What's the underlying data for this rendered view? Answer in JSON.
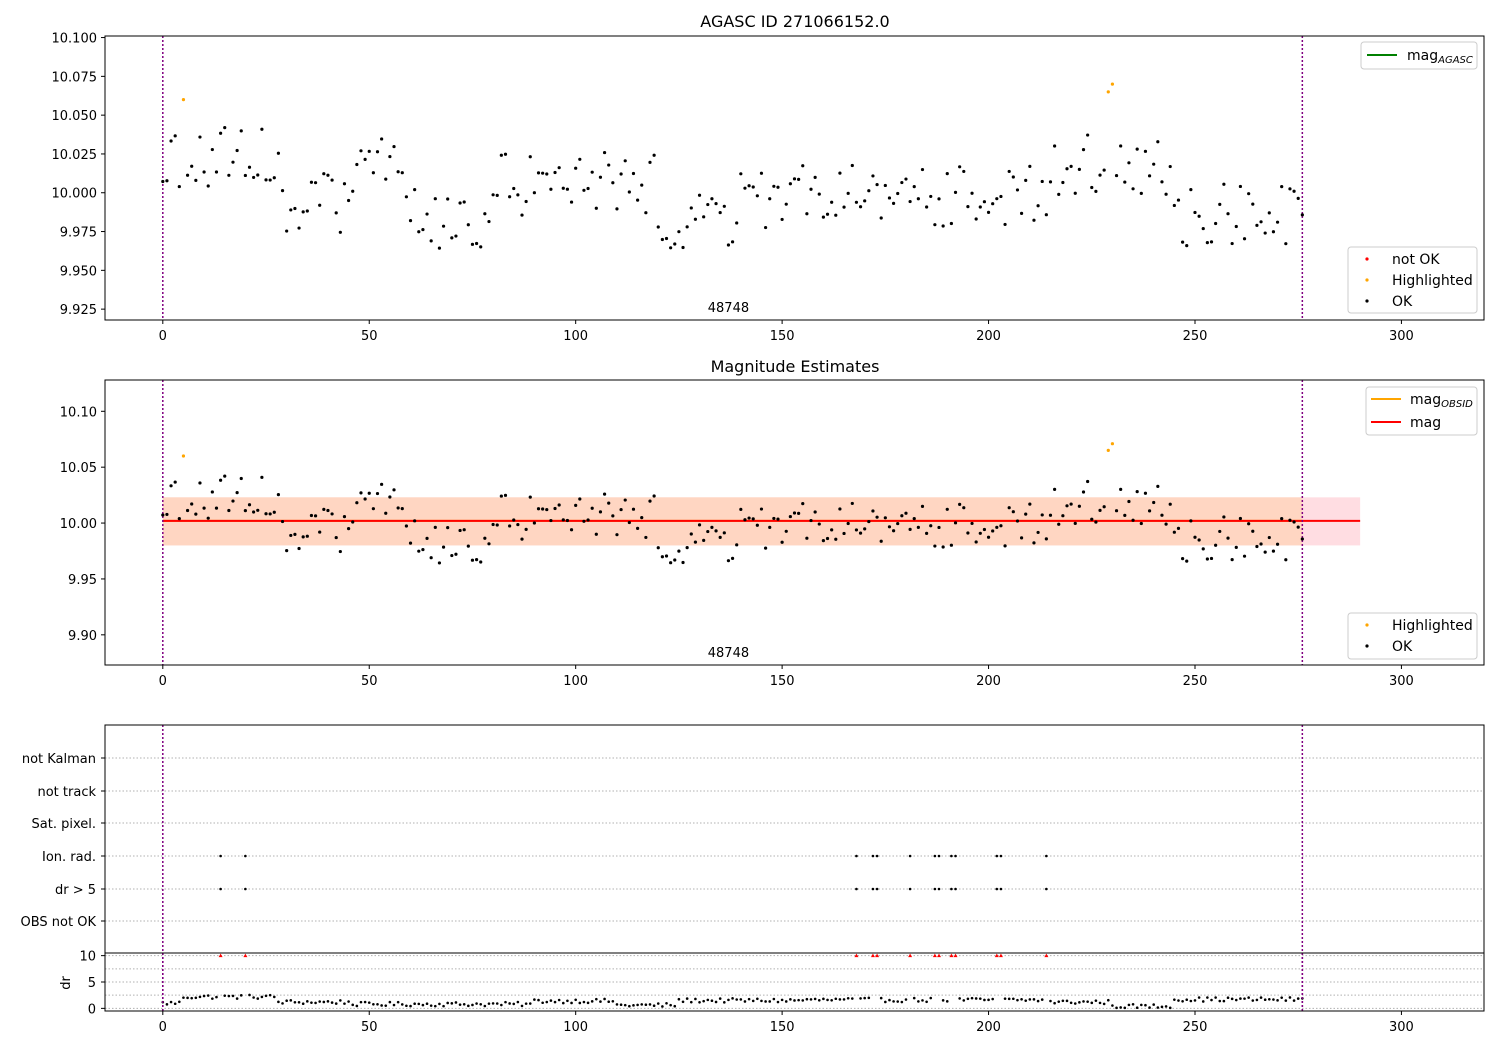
{
  "colors": {
    "ok": "#000000",
    "highlighted": "#ffa500",
    "not_ok": "#ff0000",
    "mag_agasc": "#008000",
    "mag_obsid": "#ffa500",
    "mag": "#ff0000",
    "band_outer": "#ffdde2",
    "band_inner": "#ffd6c2",
    "vline": "#800080",
    "grid": "#b0b0b0"
  },
  "chart_data": [
    {
      "id": "agasc",
      "type": "scatter",
      "title": "AGASC ID 271066152.0",
      "xlim": [
        -14,
        320
      ],
      "ylim": [
        9.918,
        10.101
      ],
      "yticks": [
        "9.925",
        "9.950",
        "9.975",
        "10.000",
        "10.025",
        "10.050",
        "10.075",
        "10.100"
      ],
      "xticks": [
        "0",
        "50",
        "100",
        "150",
        "200",
        "250",
        "300"
      ],
      "obsid_label": "48748",
      "obsid_label_x": 137,
      "vlines": [
        0,
        276
      ],
      "legend_upper": [
        "mag_AGASC"
      ],
      "legend_lower": [
        "not OK",
        "Highlighted",
        "OK"
      ],
      "highlighted_points": [
        [
          5,
          10.06
        ],
        [
          229,
          10.065
        ],
        [
          230,
          10.07
        ]
      ]
    },
    {
      "id": "estimates",
      "type": "scatter",
      "title": "Magnitude Estimates",
      "xlim": [
        -14,
        320
      ],
      "ylim": [
        9.873,
        10.128
      ],
      "yticks": [
        "9.90",
        "9.95",
        "10.00",
        "10.05",
        "10.10"
      ],
      "xticks": [
        "0",
        "50",
        "100",
        "150",
        "200",
        "250",
        "300"
      ],
      "obsid_label": "48748",
      "obsid_label_x": 137,
      "vlines": [
        0,
        276
      ],
      "mag_line": 10.002,
      "band_outer": [
        9.98,
        10.023
      ],
      "band_inner_range": [
        0,
        276
      ],
      "band_outer_range": [
        0,
        290
      ],
      "legend_upper": [
        "mag_OBSID",
        "mag"
      ],
      "legend_lower": [
        "Highlighted",
        "OK"
      ],
      "highlighted_points": [
        [
          5,
          10.06
        ],
        [
          229,
          10.065
        ],
        [
          230,
          10.071
        ]
      ]
    },
    {
      "id": "flags",
      "type": "scatter",
      "xlim": [
        -14,
        320
      ],
      "categories": [
        "not Kalman",
        "not track",
        "Sat. pixel.",
        "Ion. rad.",
        "dr > 5",
        "OBS not OK"
      ],
      "flagged_x": [
        14,
        20,
        168,
        172,
        173,
        181,
        187,
        188,
        191,
        192,
        202,
        203,
        214
      ],
      "flag_rows": [
        "Ion. rad.",
        "dr > 5"
      ],
      "vlines": [
        0,
        276
      ]
    },
    {
      "id": "dr",
      "type": "scatter",
      "ylabel": "dr",
      "xlim": [
        -14,
        320
      ],
      "ylim": [
        -0.5,
        10.5
      ],
      "yticks": [
        "0",
        "5",
        "10"
      ],
      "xticks": [
        "0",
        "50",
        "100",
        "150",
        "200",
        "250",
        "300"
      ],
      "clipped_at": 10,
      "vlines": [
        0,
        276
      ]
    }
  ],
  "legend": {
    "mag_agasc_main": "mag",
    "mag_agasc_sub": "AGASC",
    "mag_obsid_main": "mag",
    "mag_obsid_sub": "OBSID",
    "mag": "mag",
    "not_ok": "not OK",
    "highlighted": "Highlighted",
    "ok": "OK"
  }
}
